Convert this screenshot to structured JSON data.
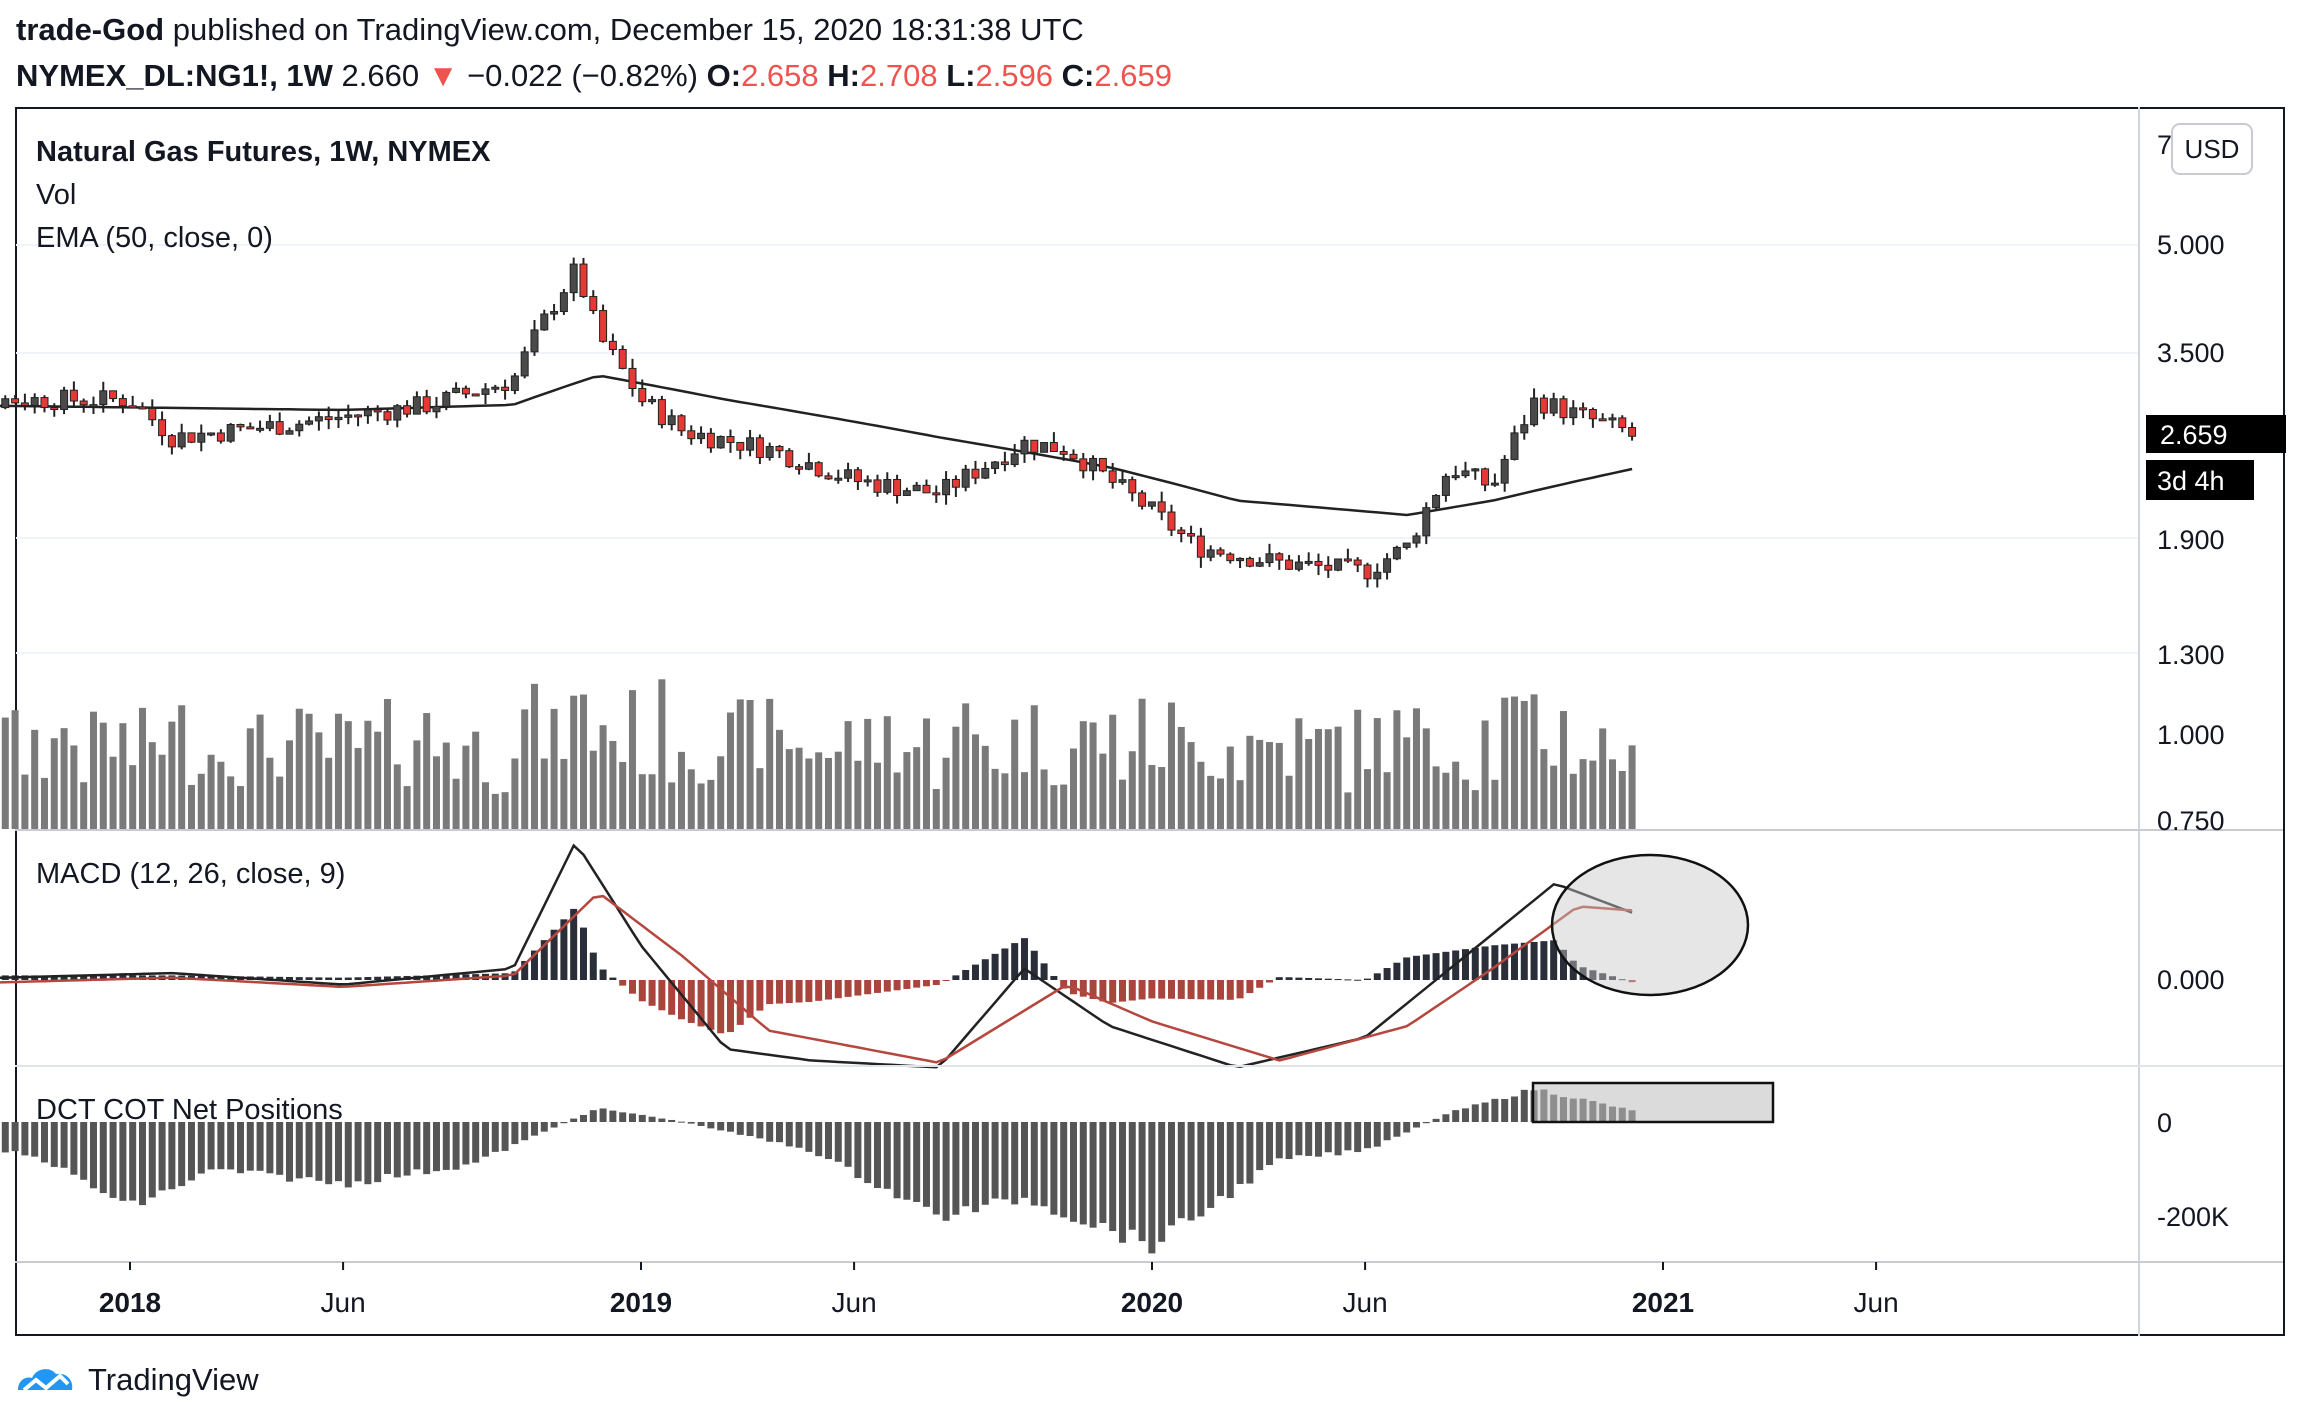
{
  "header": {
    "author": "trade-God",
    "published_text": "published on TradingView.com, December 15, 2020 18:31:38 UTC",
    "symbol": "NYMEX_DL:NG1!, 1W",
    "last": "2.660",
    "change_arrow": "▼",
    "change": "−0.022 (−0.82%)",
    "o_label": "O:",
    "o_value": "2.658",
    "h_label": "H:",
    "h_value": "2.708",
    "l_label": "L:",
    "l_value": "2.596",
    "c_label": "C:",
    "c_value": "2.659"
  },
  "legend": {
    "title": "Natural Gas Futures, 1W, NYMEX",
    "vol": "Vol",
    "ema": "EMA (50, close, 0)",
    "macd": "MACD (12, 26, close, 9)",
    "cot": "DCT COT Net Positions"
  },
  "price_axis": {
    "currency": "USD",
    "top_partial": "7",
    "ticks": [
      "5.000",
      "3.500",
      "2.659",
      "1.900",
      "1.300",
      "1.000",
      "0.750"
    ],
    "last_price_label": "2.659",
    "countdown_label": "3d 4h",
    "macd_tick": "0.000",
    "cot_ticks": [
      "0",
      "-200K"
    ]
  },
  "time_axis": {
    "labels": [
      "2018",
      "Jun",
      "2019",
      "Jun",
      "2020",
      "Jun",
      "2021",
      "Jun"
    ],
    "bold": [
      true,
      false,
      true,
      false,
      true,
      false,
      true,
      false
    ]
  },
  "footer": {
    "brand": "TradingView"
  },
  "colors": {
    "up": "#4a4a4a",
    "down": "#e53935",
    "volume": "#7a7a7a",
    "ema": "#222222",
    "macd_line": "#222222",
    "signal_line": "#b5473e",
    "hist_pos": "#2a2e39",
    "hist_neg": "#a8453d",
    "cot": "#555555"
  },
  "chart_data": [
    {
      "type": "candlestick",
      "title": "Natural Gas Futures, 1W, NYMEX",
      "y_scale": "log",
      "y_ticks": [
        1.3,
        1.9,
        3.5,
        5.0
      ],
      "x_range": [
        "2017-08",
        "2021-08"
      ],
      "anchors": [
        {
          "date": "2017-08",
          "close": 2.9
        },
        {
          "date": "2017-10",
          "close": 3.0
        },
        {
          "date": "2018-01",
          "close": 3.0
        },
        {
          "date": "2018-02",
          "close": 2.65
        },
        {
          "date": "2018-05",
          "close": 2.78
        },
        {
          "date": "2018-08",
          "close": 2.95
        },
        {
          "date": "2018-10",
          "close": 3.2
        },
        {
          "date": "2018-11-15",
          "close": 4.6
        },
        {
          "date": "2018-12",
          "close": 3.7
        },
        {
          "date": "2019-01",
          "close": 3.0
        },
        {
          "date": "2019-02",
          "close": 2.7
        },
        {
          "date": "2019-04",
          "close": 2.55
        },
        {
          "date": "2019-06",
          "close": 2.3
        },
        {
          "date": "2019-08",
          "close": 2.2
        },
        {
          "date": "2019-10",
          "close": 2.6
        },
        {
          "date": "2019-11",
          "close": 2.55
        },
        {
          "date": "2019-12",
          "close": 2.3
        },
        {
          "date": "2020-02",
          "close": 1.85
        },
        {
          "date": "2020-04",
          "close": 1.75
        },
        {
          "date": "2020-06",
          "close": 1.7
        },
        {
          "date": "2020-07",
          "close": 1.85
        },
        {
          "date": "2020-08",
          "close": 2.4
        },
        {
          "date": "2020-09",
          "close": 2.25
        },
        {
          "date": "2020-10",
          "close": 3.0
        },
        {
          "date": "2020-11",
          "close": 2.85
        },
        {
          "date": "2020-12-15",
          "close": 2.659
        }
      ],
      "ema_anchors": [
        {
          "date": "2017-08",
          "value": 2.95
        },
        {
          "date": "2018-06",
          "value": 2.9
        },
        {
          "date": "2018-10",
          "value": 2.95
        },
        {
          "date": "2018-12",
          "value": 3.25
        },
        {
          "date": "2019-03",
          "value": 3.0
        },
        {
          "date": "2019-08",
          "value": 2.65
        },
        {
          "date": "2019-12",
          "value": 2.4
        },
        {
          "date": "2020-03",
          "value": 2.15
        },
        {
          "date": "2020-07",
          "value": 2.05
        },
        {
          "date": "2020-09",
          "value": 2.15
        },
        {
          "date": "2020-12-15",
          "value": 2.4
        }
      ]
    },
    {
      "type": "bar",
      "series_label": "Vol",
      "y_scale": "relative",
      "note": "weekly volume bars, relative heights"
    },
    {
      "type": "line",
      "title": "MACD (12, 26, close, 9)",
      "series": [
        {
          "label": "MACD",
          "anchors": [
            {
              "date": "2017-08",
              "value": 0.0
            },
            {
              "date": "2018-02",
              "value": 0.03
            },
            {
              "date": "2018-06",
              "value": -0.02
            },
            {
              "date": "2018-10",
              "value": 0.05
            },
            {
              "date": "2018-11-15",
              "value": 0.6
            },
            {
              "date": "2019-01",
              "value": 0.15
            },
            {
              "date": "2019-03",
              "value": -0.3
            },
            {
              "date": "2019-05",
              "value": -0.35
            },
            {
              "date": "2019-08",
              "value": -0.38
            },
            {
              "date": "2019-10",
              "value": 0.05
            },
            {
              "date": "2019-12",
              "value": -0.2
            },
            {
              "date": "2020-03",
              "value": -0.38
            },
            {
              "date": "2020-06",
              "value": -0.25
            },
            {
              "date": "2020-08",
              "value": 0.05
            },
            {
              "date": "2020-10-15",
              "value": 0.42
            },
            {
              "date": "2020-12-15",
              "value": 0.28
            }
          ]
        },
        {
          "label": "Signal",
          "anchors": [
            {
              "date": "2017-08",
              "value": -0.02
            },
            {
              "date": "2018-02",
              "value": 0.01
            },
            {
              "date": "2018-06",
              "value": -0.03
            },
            {
              "date": "2018-10",
              "value": 0.02
            },
            {
              "date": "2018-12",
              "value": 0.38
            },
            {
              "date": "2019-02",
              "value": 0.1
            },
            {
              "date": "2019-04",
              "value": -0.22
            },
            {
              "date": "2019-08",
              "value": -0.36
            },
            {
              "date": "2019-11",
              "value": -0.02
            },
            {
              "date": "2020-01",
              "value": -0.18
            },
            {
              "date": "2020-04",
              "value": -0.35
            },
            {
              "date": "2020-07",
              "value": -0.2
            },
            {
              "date": "2020-09",
              "value": 0.05
            },
            {
              "date": "2020-11",
              "value": 0.32
            },
            {
              "date": "2020-12-15",
              "value": 0.3
            }
          ]
        }
      ],
      "zero_label": "0.000"
    },
    {
      "type": "bar",
      "title": "DCT COT Net Positions",
      "y_ticks": [
        0,
        -200000
      ],
      "tick_labels": [
        "0",
        "-200K"
      ],
      "anchors": [
        {
          "date": "2017-08",
          "value": -20000
        },
        {
          "date": "2017-11",
          "value": -80000
        },
        {
          "date": "2018-01",
          "value": -180000
        },
        {
          "date": "2018-03",
          "value": -100000
        },
        {
          "date": "2018-06",
          "value": -130000
        },
        {
          "date": "2018-09",
          "value": -90000
        },
        {
          "date": "2018-12",
          "value": 30000
        },
        {
          "date": "2019-02",
          "value": 0
        },
        {
          "date": "2019-05",
          "value": -60000
        },
        {
          "date": "2019-08",
          "value": -200000
        },
        {
          "date": "2019-10",
          "value": -160000
        },
        {
          "date": "2020-01",
          "value": -260000
        },
        {
          "date": "2020-04",
          "value": -80000
        },
        {
          "date": "2020-06",
          "value": -60000
        },
        {
          "date": "2020-08",
          "value": 20000
        },
        {
          "date": "2020-10",
          "value": 70000
        },
        {
          "date": "2020-12-15",
          "value": 20000
        }
      ]
    }
  ]
}
